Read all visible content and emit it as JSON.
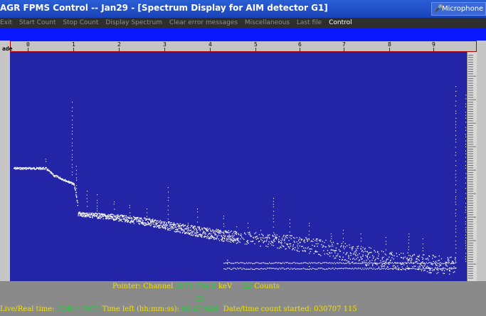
{
  "window": {
    "title": "AGR FPMS Control -- Jan29 - [Spectrum Display for AIM detector G1]",
    "taskbar_button": "Microphone"
  },
  "menu": [
    "Exit",
    "Start Count",
    "Stop Count",
    "Display Spectrum",
    "Clear error messages",
    "Miscellaneous",
    "Last file",
    "Control"
  ],
  "ruler": {
    "mode_label": "ade",
    "ticks": [
      "0",
      "1",
      "2",
      "3",
      "4",
      "5",
      "6",
      "7",
      "8",
      "9"
    ]
  },
  "status": {
    "pointer_label": "Pointer: Channel",
    "channel": "2071",
    "energy": "754.1",
    "energy_unit": "keV",
    "counts": "22",
    "counts_label": "Counts",
    "detector": "G1",
    "livereal_label": "Live/Real time:",
    "livereal_value": "7040 / 7077",
    "timeleft_label": "Time left (hh:mm:ss):",
    "timeleft_value": "03:47:024",
    "started_label": "Date/time count started:",
    "started_value": "030707 115"
  },
  "colors": {
    "plot_bg": "#2424a6",
    "points": "#ffffff",
    "yellow": "#f2e200",
    "green": "#20d03a"
  }
}
